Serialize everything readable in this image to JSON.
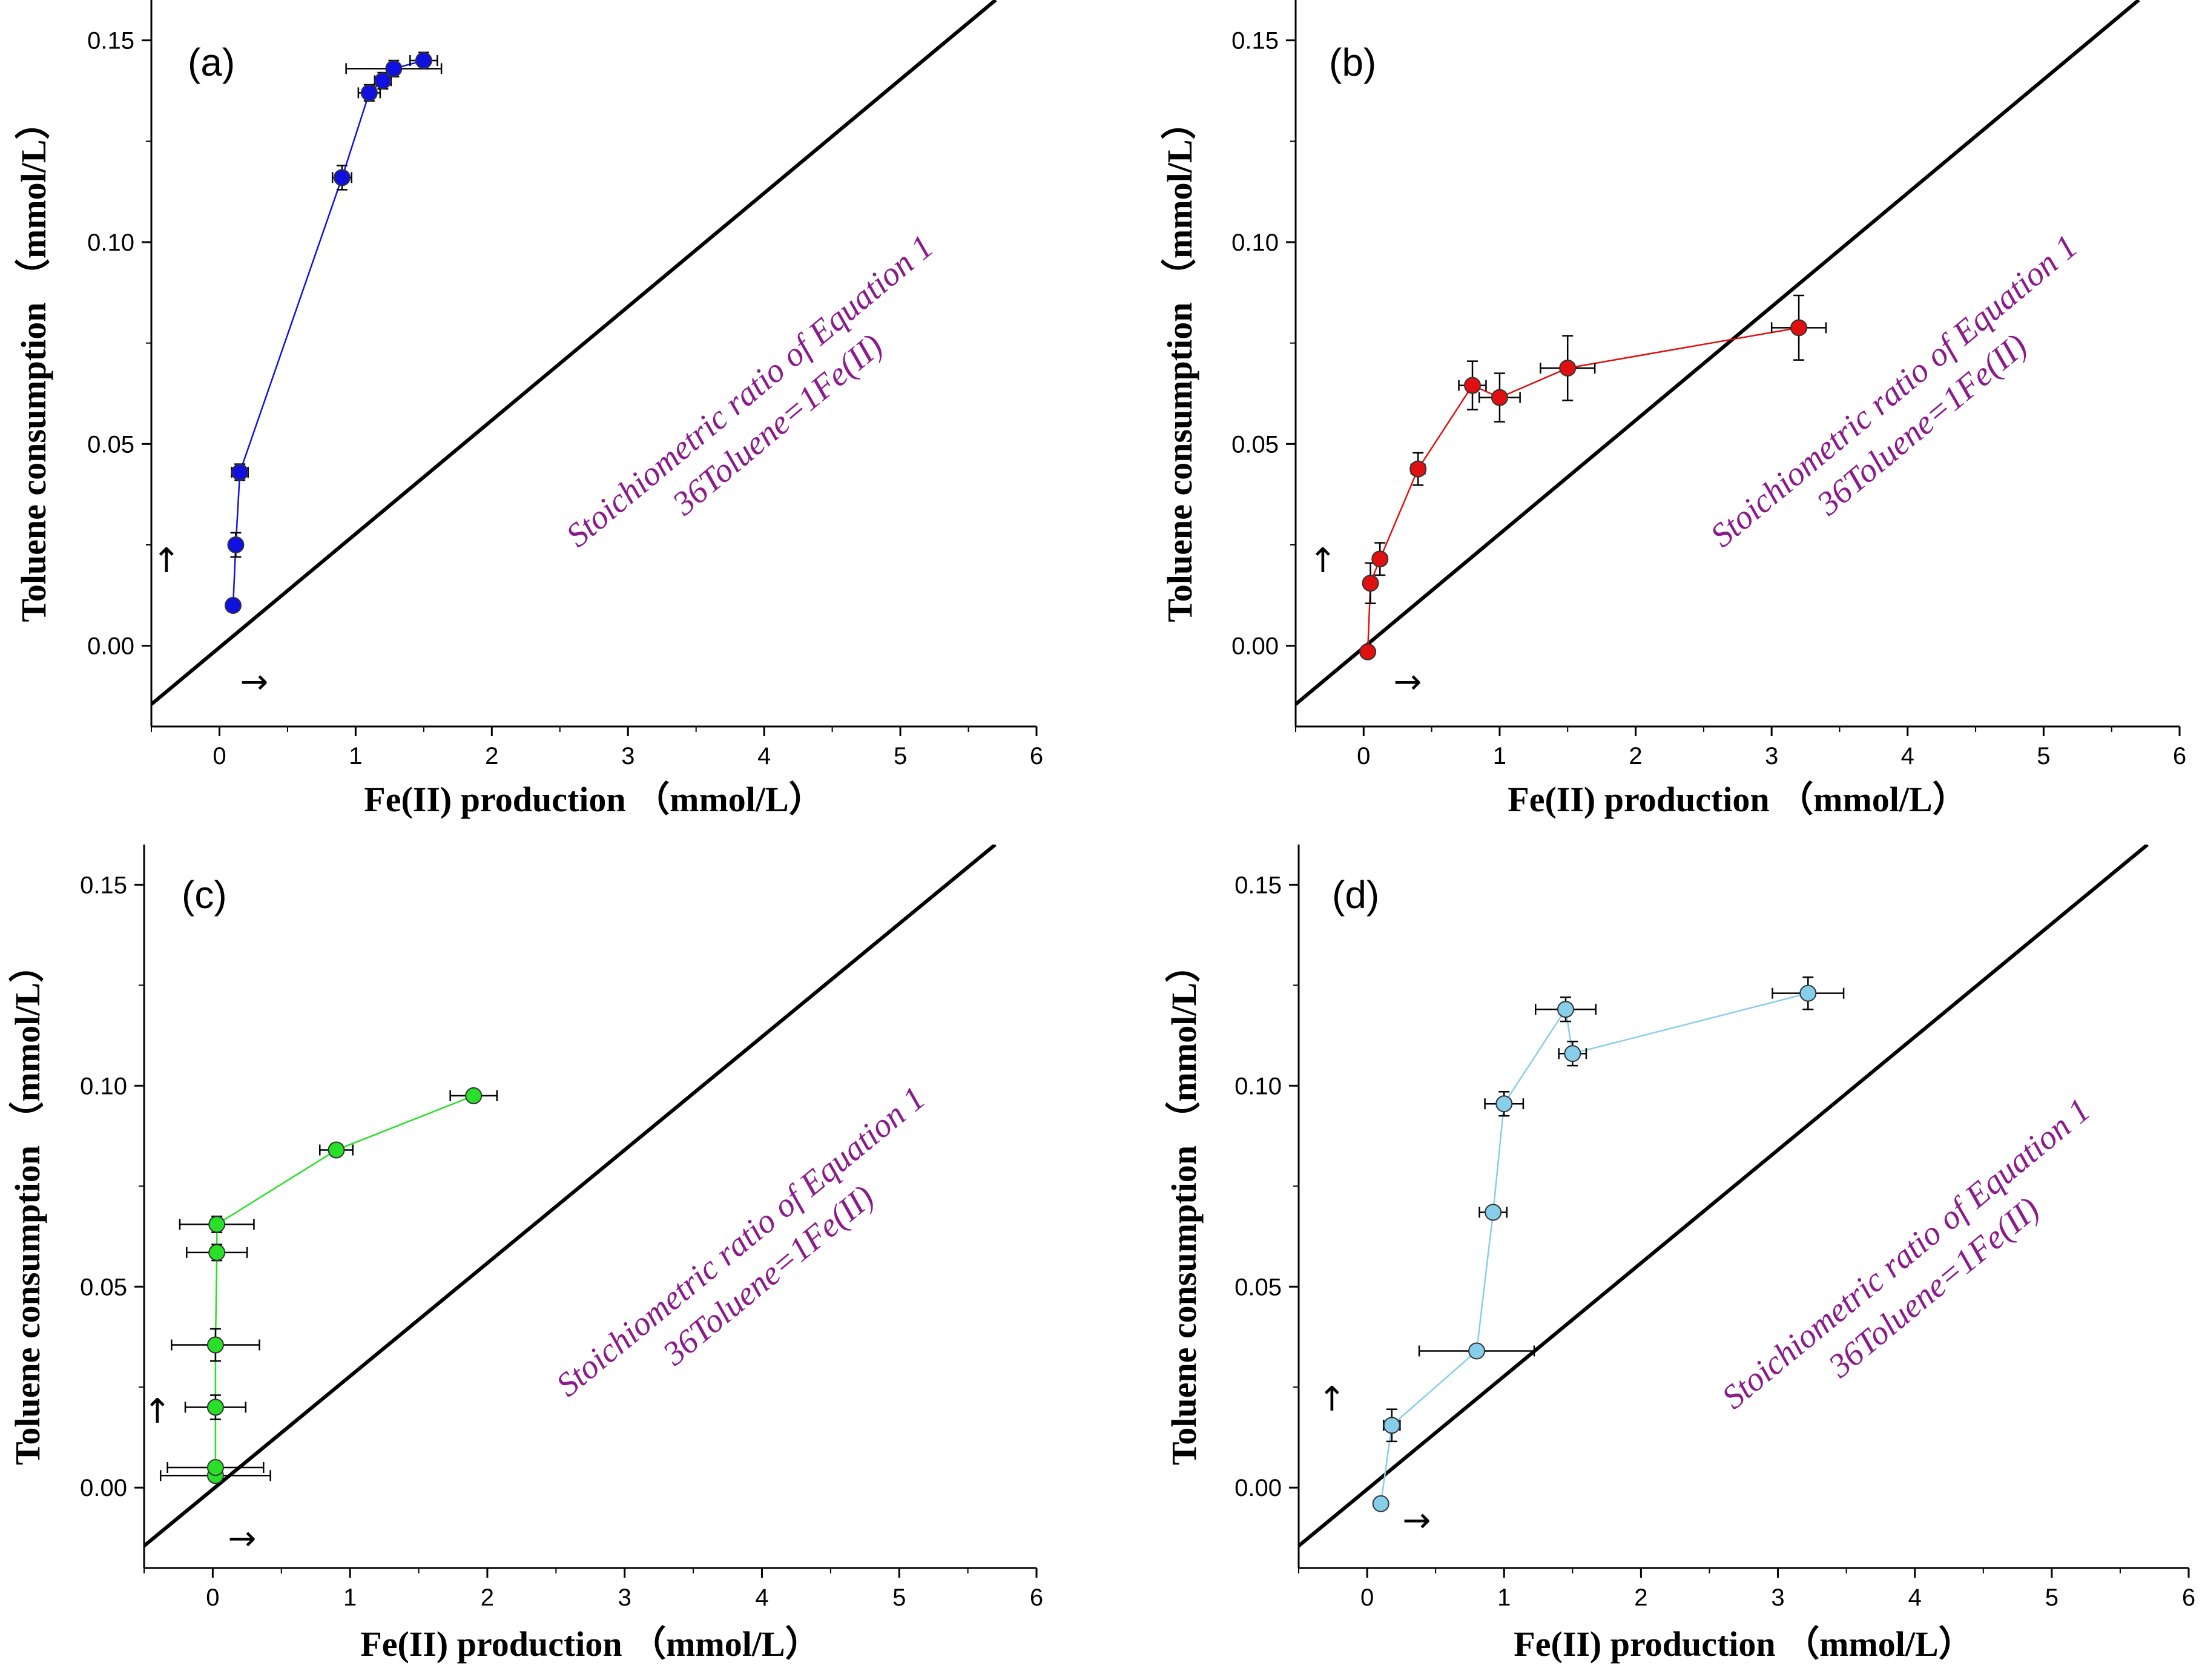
{
  "chart_data": [
    {
      "type": "scatter",
      "panel_label": "(a)",
      "xlabel": "Fe(II) production （mmol/L）",
      "ylabel": "Toluene consumption （mmol/L）",
      "xlim": [
        -0.5,
        6
      ],
      "ylim": [
        -0.02,
        0.16
      ],
      "xticks": [
        0,
        1,
        2,
        3,
        4,
        5,
        6
      ],
      "xtick_labels": [
        "0",
        "1",
        "2",
        "3",
        "4",
        "5",
        "6"
      ],
      "yticks": [
        0,
        0.05,
        0.1,
        0.15
      ],
      "ytick_labels": [
        "0.00",
        "0.05",
        "0.10",
        "0.15"
      ],
      "annotation_line1": "Stoichiometric ratio of Equation 1",
      "annotation_line2": "36Toluene=1Fe(II)",
      "reference_line": {
        "x": [
          -0.5,
          5.7
        ],
        "y": [
          -0.0145,
          0.16
        ]
      },
      "up_arrow": "↑",
      "right_arrow": "→",
      "series": [
        {
          "name": "data",
          "color": "#1010e0",
          "x": [
            0.1,
            0.12,
            0.15,
            0.9,
            1.1,
            1.2,
            1.28,
            1.5
          ],
          "y": [
            0.01,
            0.025,
            0.043,
            0.116,
            0.137,
            0.14,
            0.143,
            0.145
          ],
          "xerr": [
            0.0,
            0.02,
            0.06,
            0.07,
            0.08,
            0.06,
            0.35,
            0.1
          ],
          "yerr": [
            0.0,
            0.003,
            0.002,
            0.003,
            0.002,
            0.002,
            0.002,
            0.002
          ]
        }
      ]
    },
    {
      "type": "scatter",
      "panel_label": "(b)",
      "xlabel": "Fe(II) production （mmol/L）",
      "ylabel": "Toluene consumption （mmol/L）",
      "xlim": [
        -0.5,
        6
      ],
      "ylim": [
        -0.02,
        0.16
      ],
      "xticks": [
        0,
        1,
        2,
        3,
        4,
        5,
        6
      ],
      "xtick_labels": [
        "0",
        "1",
        "2",
        "3",
        "4",
        "5",
        "6"
      ],
      "yticks": [
        0,
        0.05,
        0.1,
        0.15
      ],
      "ytick_labels": [
        "0.00",
        "0.05",
        "0.10",
        "0.15"
      ],
      "annotation_line1": "Stoichiometric ratio of Equation 1",
      "annotation_line2": "36Toluene=1Fe(II)",
      "reference_line": {
        "x": [
          -0.5,
          5.7
        ],
        "y": [
          -0.0145,
          0.16
        ]
      },
      "up_arrow": "↑",
      "right_arrow": "→",
      "series": [
        {
          "name": "data",
          "color": "#e01010",
          "x": [
            0.03,
            0.05,
            0.12,
            0.4,
            0.8,
            1.0,
            1.5,
            3.2
          ],
          "y": [
            -0.0015,
            0.0155,
            0.0215,
            0.0438,
            0.0645,
            0.0615,
            0.0688,
            0.0788
          ],
          "xerr": [
            0.02,
            0.03,
            0.04,
            0.05,
            0.1,
            0.15,
            0.2,
            0.2
          ],
          "yerr": [
            0.001,
            0.005,
            0.004,
            0.004,
            0.006,
            0.006,
            0.008,
            0.008
          ]
        }
      ]
    },
    {
      "type": "scatter",
      "panel_label": "(c)",
      "xlabel": "Fe(II) production （mmol/L）",
      "ylabel": "Toluene consumption （mmol/L）",
      "xlim": [
        -0.5,
        6
      ],
      "ylim": [
        -0.02,
        0.16
      ],
      "xticks": [
        0,
        1,
        2,
        3,
        4,
        5,
        6
      ],
      "xtick_labels": [
        "0",
        "1",
        "2",
        "3",
        "4",
        "5",
        "6"
      ],
      "yticks": [
        0,
        0.05,
        0.1,
        0.15
      ],
      "ytick_labels": [
        "0.00",
        "0.05",
        "0.10",
        "0.15"
      ],
      "annotation_line1": "Stoichiometric ratio of Equation 1",
      "annotation_line2": "36Toluene=1Fe(II)",
      "reference_line": {
        "x": [
          -0.5,
          5.7
        ],
        "y": [
          -0.0145,
          0.16
        ]
      },
      "up_arrow": "↑",
      "right_arrow": "→",
      "series": [
        {
          "name": "data",
          "color": "#28e028",
          "x": [
            0.02,
            0.02,
            0.02,
            0.02,
            0.03,
            0.03,
            0.9,
            1.9
          ],
          "y": [
            0.003,
            0.005,
            0.02,
            0.0355,
            0.0585,
            0.0655,
            0.084,
            0.0975
          ],
          "xerr": [
            0.4,
            0.35,
            0.22,
            0.32,
            0.22,
            0.27,
            0.12,
            0.17
          ],
          "yerr": [
            0.001,
            0.001,
            0.003,
            0.004,
            0.002,
            0.002,
            0.001,
            0.001
          ]
        }
      ]
    },
    {
      "type": "scatter",
      "panel_label": "(d)",
      "xlabel": "Fe(II) production （mmol/L）",
      "ylabel": "Toluene consumption （mmol/L）",
      "xlim": [
        -0.5,
        6
      ],
      "ylim": [
        -0.02,
        0.16
      ],
      "xticks": [
        0,
        1,
        2,
        3,
        4,
        5,
        6
      ],
      "xtick_labels": [
        "0",
        "1",
        "2",
        "3",
        "4",
        "5",
        "6"
      ],
      "yticks": [
        0,
        0.05,
        0.1,
        0.15
      ],
      "ytick_labels": [
        "0.00",
        "0.05",
        "0.10",
        "0.15"
      ],
      "annotation_line1": "Stoichiometric ratio of Equation 1",
      "annotation_line2": "36Toluene=1Fe(II)",
      "reference_line": {
        "x": [
          -0.5,
          5.7
        ],
        "y": [
          -0.0145,
          0.16
        ]
      },
      "up_arrow": "↑",
      "right_arrow": "→",
      "series": [
        {
          "name": "data",
          "color": "#87ceeb",
          "x": [
            0.1,
            0.18,
            0.8,
            0.92,
            1.0,
            1.45,
            1.5,
            3.22
          ],
          "y": [
            -0.004,
            0.0155,
            0.034,
            0.0685,
            0.0955,
            0.119,
            0.108,
            0.123
          ],
          "xerr": [
            0.04,
            0.06,
            0.42,
            0.1,
            0.14,
            0.22,
            0.1,
            0.26
          ],
          "yerr": [
            0.001,
            0.004,
            0.001,
            0.001,
            0.003,
            0.003,
            0.003,
            0.004
          ]
        }
      ]
    }
  ]
}
